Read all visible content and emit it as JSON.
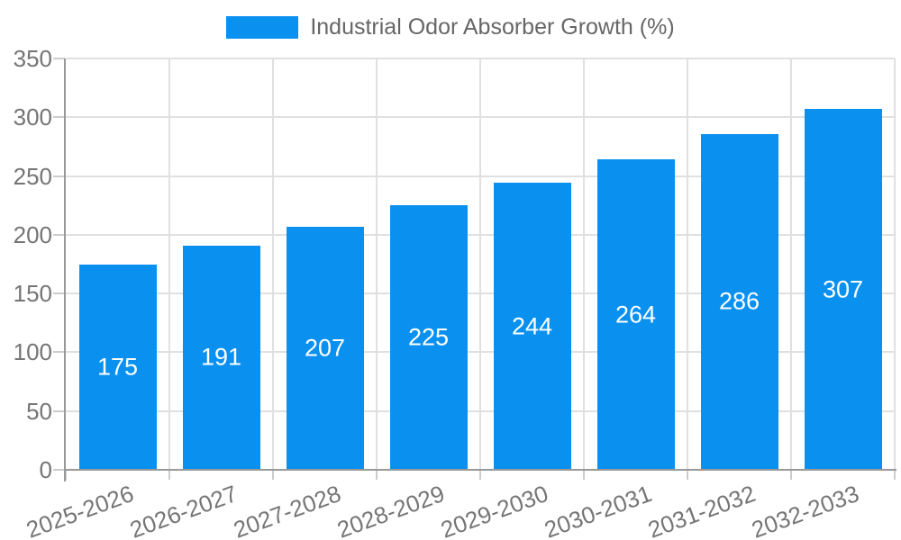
{
  "chart_data": {
    "type": "bar",
    "title": "Industrial Odor Absorber Growth (%)",
    "categories": [
      "2025-2026",
      "2026-2027",
      "2027-2028",
      "2028-2029",
      "2029-2030",
      "2030-2031",
      "2031-2032",
      "2032-2033"
    ],
    "values": [
      175,
      191,
      207,
      225,
      244,
      264,
      286,
      307
    ],
    "series": [
      {
        "name": "Industrial Odor Absorber Growth (%)",
        "values": [
          175,
          191,
          207,
          225,
          244,
          264,
          286,
          307
        ]
      }
    ],
    "xlabel": "",
    "ylabel": "",
    "ylim": [
      0,
      350
    ],
    "yticks": [
      0,
      50,
      100,
      150,
      200,
      250,
      300,
      350
    ],
    "grid": true,
    "legend_position": "top-center",
    "bar_labels_inside": true,
    "colors": {
      "bar": "#0a91f0",
      "value_label": "#ffffff",
      "axis_line": "#999999",
      "grid_line": "#e0e0e0",
      "tick_mark": "#cccccc",
      "tick_text": "#757575",
      "legend_text": "#666666",
      "background": "#ffffff"
    }
  }
}
